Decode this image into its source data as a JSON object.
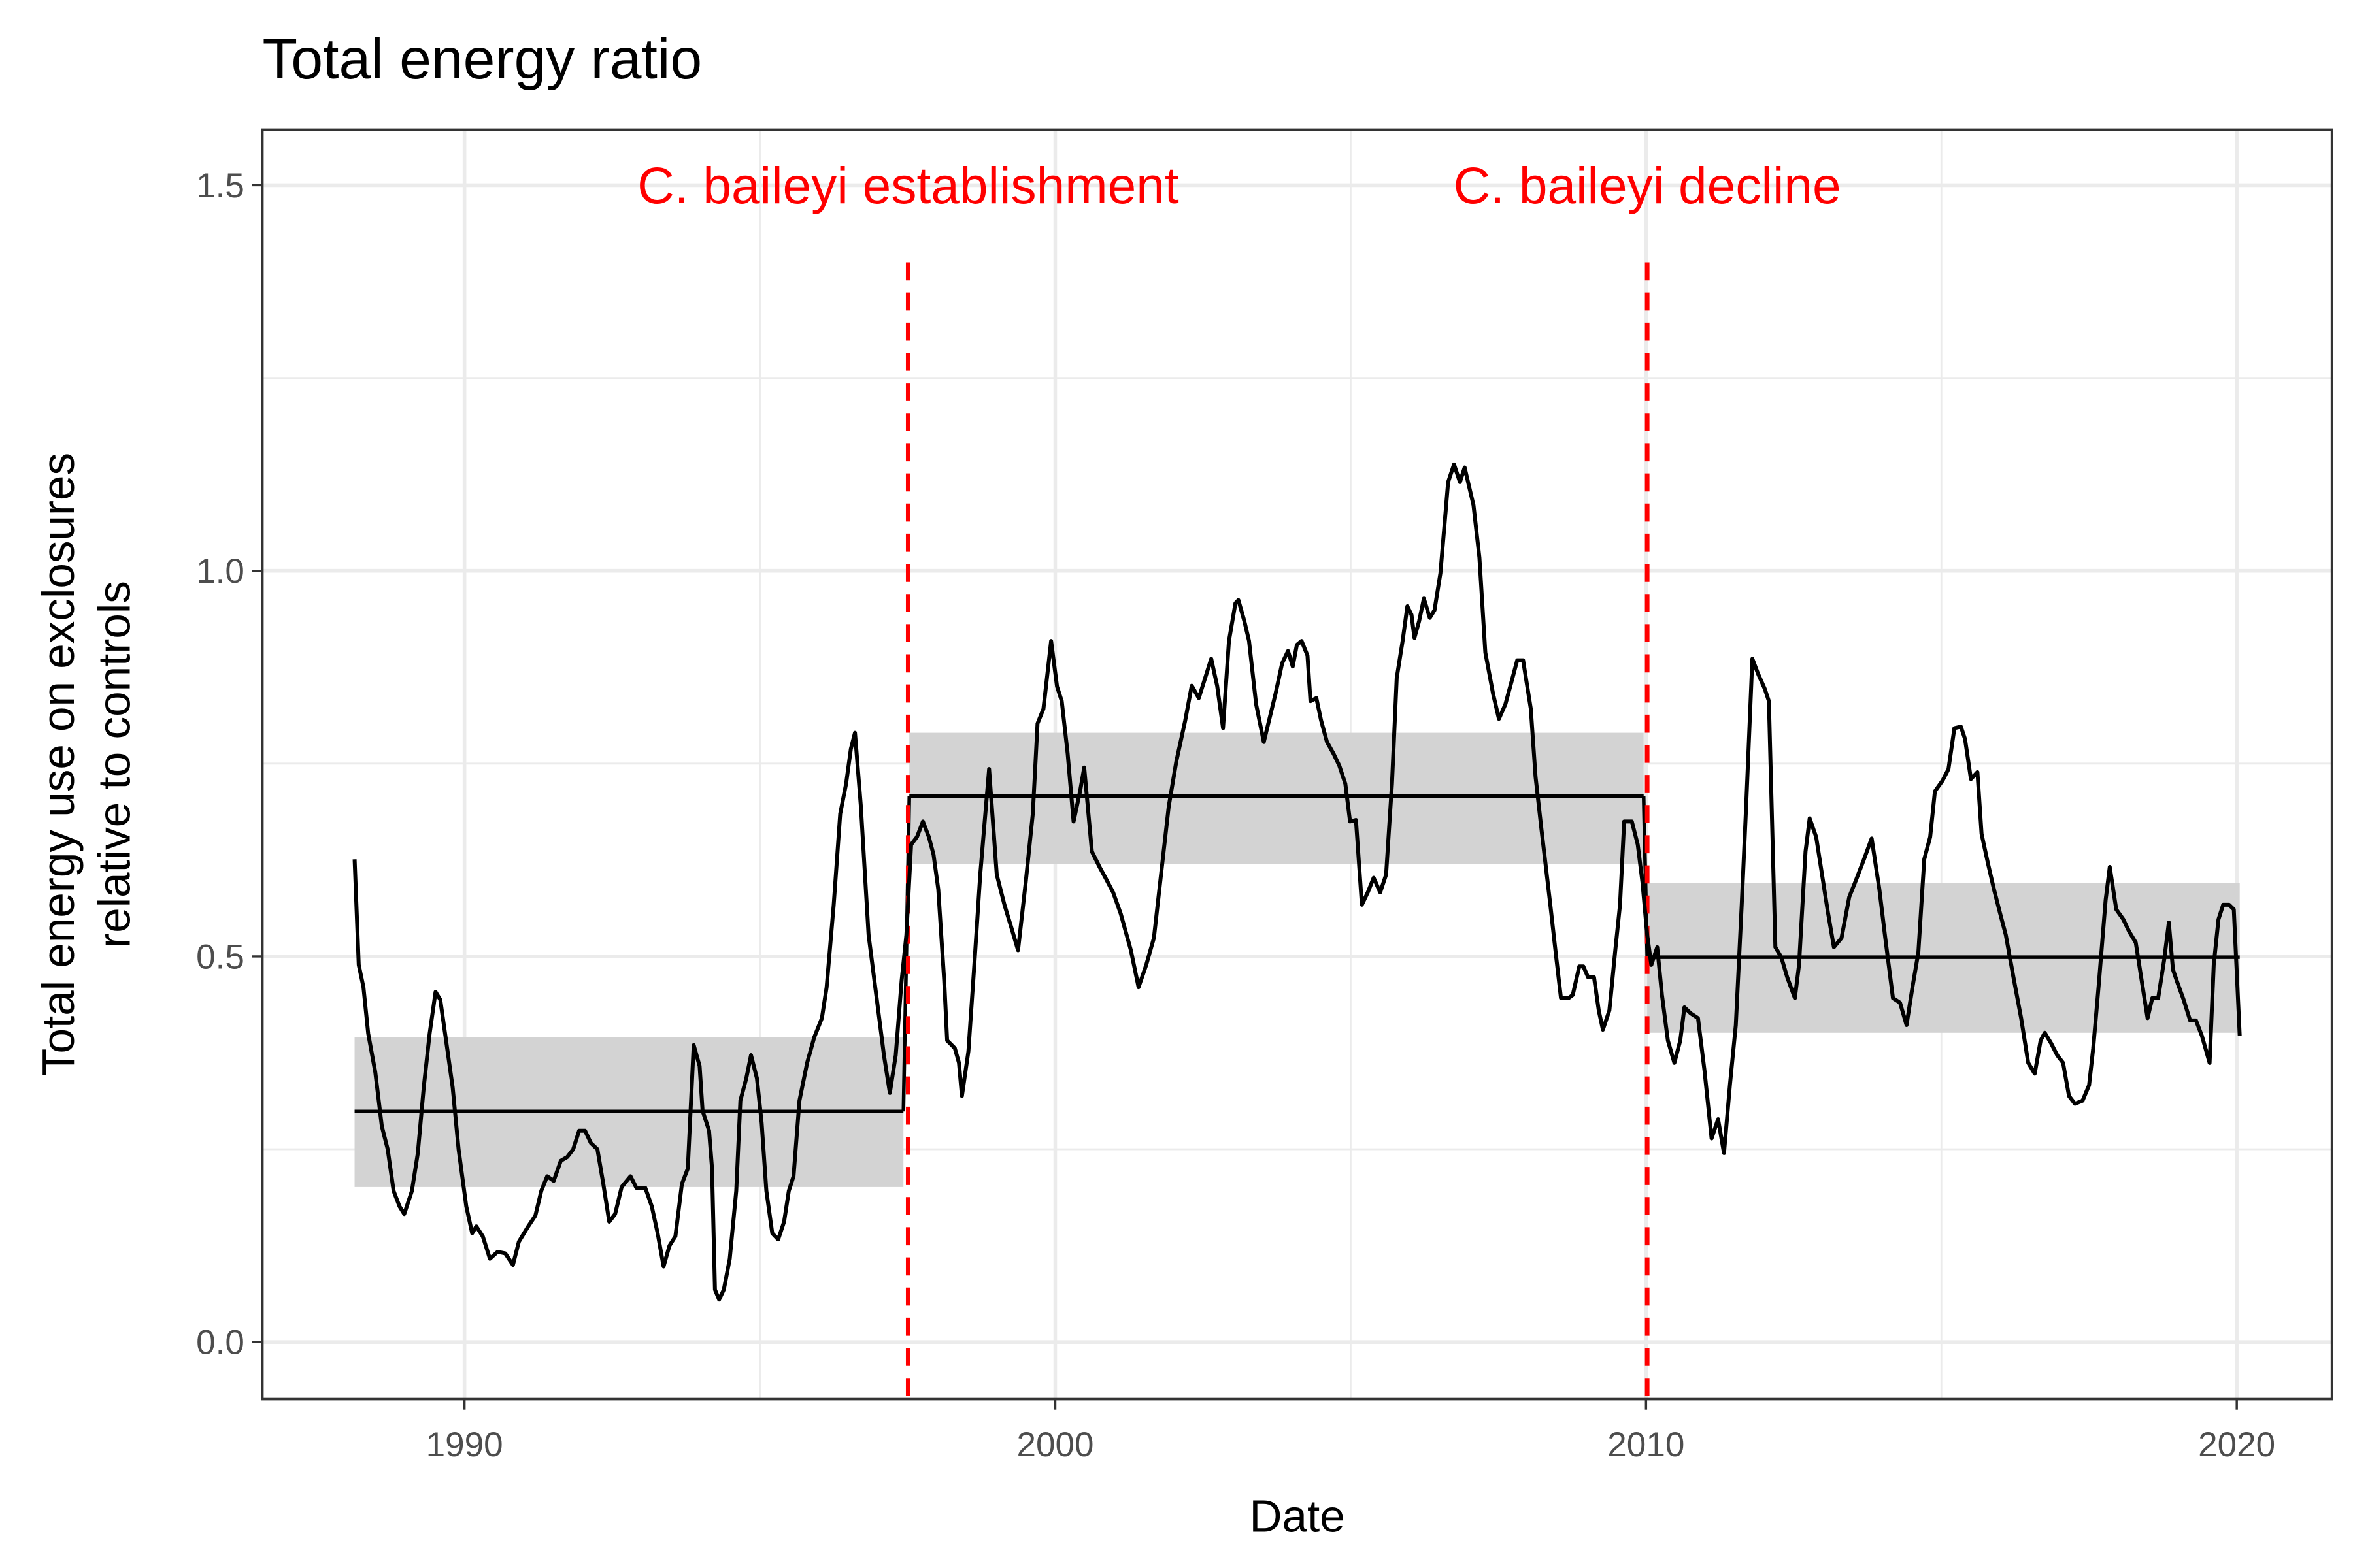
{
  "chart_data": {
    "type": "line",
    "title": "Total energy ratio",
    "xlabel": "Date",
    "ylabel": [
      "Total energy use on exclosures",
      "relative to controls"
    ],
    "xlim": [
      1986.58,
      2021.61
    ],
    "ylim": [
      -0.074,
      1.572
    ],
    "xticks": [
      1990,
      2000,
      2010,
      2020
    ],
    "yticks": [
      {
        "value": 0,
        "label": "0.0"
      },
      0.5,
      {
        "value": 1,
        "label": "1.0"
      },
      1.5
    ],
    "x_minor": [
      1995,
      2005,
      2015
    ],
    "y_minor": [
      0.25,
      0.75,
      1.25
    ],
    "grid": true,
    "color": "#000000",
    "band_color": "#d3d3d3",
    "changepoint_color": "#ff0000",
    "x": [
      1988.14,
      1988.21,
      1988.29,
      1988.37,
      1988.49,
      1988.6,
      1988.7,
      1988.8,
      1988.9,
      1988.98,
      1989.11,
      1989.21,
      1989.31,
      1989.41,
      1989.51,
      1989.59,
      1989.69,
      1989.8,
      1989.9,
      1990.03,
      1990.13,
      1990.2,
      1990.31,
      1990.43,
      1990.56,
      1990.69,
      1990.82,
      1990.92,
      1991.07,
      1991.2,
      1991.3,
      1991.4,
      1991.51,
      1991.63,
      1991.74,
      1991.84,
      1991.94,
      1992.04,
      1992.14,
      1992.25,
      1992.35,
      1992.45,
      1992.55,
      1992.66,
      1992.81,
      1992.91,
      1993.06,
      1993.17,
      1993.27,
      1993.37,
      1993.47,
      1993.57,
      1993.68,
      1993.78,
      1993.88,
      1993.98,
      1994.03,
      1994.14,
      1994.19,
      1994.24,
      1994.31,
      1994.39,
      1994.49,
      1994.6,
      1994.67,
      1994.77,
      1994.85,
      1994.95,
      1995.03,
      1995.11,
      1995.21,
      1995.31,
      1995.41,
      1995.49,
      1995.57,
      1995.67,
      1995.8,
      1995.92,
      1996.05,
      1996.13,
      1996.25,
      1996.36,
      1996.46,
      1996.54,
      1996.61,
      1996.71,
      1996.84,
      1996.97,
      1997.1,
      1997.2,
      1997.3,
      1997.4,
      1997.48,
      1997.56,
      1997.66,
      1997.76,
      1997.86,
      1997.94,
      1998.02,
      1998.12,
      1998.17,
      1998.3,
      1998.37,
      1998.42,
      1998.53,
      1998.63,
      1998.73,
      1998.88,
      1999.01,
      1999.14,
      1999.27,
      1999.37,
      1999.5,
      1999.62,
      1999.7,
      1999.8,
      1999.93,
      2000.03,
      2000.11,
      2000.21,
      2000.31,
      2000.42,
      2000.49,
      2000.62,
      2000.75,
      2000.85,
      2000.98,
      2001.11,
      2001.28,
      2001.41,
      2001.54,
      2001.67,
      2001.79,
      2001.92,
      2002.05,
      2002.2,
      2002.31,
      2002.43,
      2002.64,
      2002.74,
      2002.84,
      2002.94,
      2003.05,
      2003.1,
      2003.2,
      2003.28,
      2003.4,
      2003.53,
      2003.73,
      2003.84,
      2003.94,
      2004.02,
      2004.09,
      2004.17,
      2004.27,
      2004.32,
      2004.42,
      2004.5,
      2004.6,
      2004.71,
      2004.81,
      2004.91,
      2004.99,
      2005.09,
      2005.19,
      2005.29,
      2005.39,
      2005.5,
      2005.6,
      2005.7,
      2005.78,
      2005.88,
      2005.96,
      2006.03,
      2006.08,
      2006.16,
      2006.24,
      2006.34,
      2006.42,
      2006.52,
      2006.65,
      2006.75,
      2006.85,
      2006.93,
      2007.0,
      2007.08,
      2007.18,
      2007.28,
      2007.41,
      2007.51,
      2007.62,
      2007.74,
      2007.82,
      2007.92,
      2008.05,
      2008.13,
      2008.23,
      2008.38,
      2008.48,
      2008.56,
      2008.69,
      2008.76,
      2008.87,
      2008.94,
      2009.02,
      2009.12,
      2009.2,
      2009.27,
      2009.38,
      2009.48,
      2009.56,
      2009.63,
      2009.76,
      2009.86,
      2009.94,
      2010.02,
      2010.09,
      2010.19,
      2010.27,
      2010.37,
      2010.48,
      2010.58,
      2010.65,
      2010.76,
      2010.88,
      2010.99,
      2011.11,
      2011.22,
      2011.32,
      2011.42,
      2011.52,
      2011.62,
      2011.7,
      2011.8,
      2011.9,
      2012.01,
      2012.08,
      2012.19,
      2012.29,
      2012.39,
      2012.52,
      2012.59,
      2012.7,
      2012.77,
      2012.88,
      2012.98,
      2013.08,
      2013.18,
      2013.31,
      2013.44,
      2013.56,
      2013.69,
      2013.82,
      2013.95,
      2014.05,
      2014.18,
      2014.3,
      2014.41,
      2014.51,
      2014.61,
      2014.71,
      2014.81,
      2014.89,
      2015.02,
      2015.12,
      2015.22,
      2015.33,
      2015.4,
      2015.5,
      2015.61,
      2015.68,
      2015.79,
      2015.89,
      2015.99,
      2016.09,
      2016.22,
      2016.35,
      2016.47,
      2016.58,
      2016.68,
      2016.75,
      2016.86,
      2016.96,
      2017.06,
      2017.16,
      2017.26,
      2017.39,
      2017.5,
      2017.57,
      2017.67,
      2017.78,
      2017.85,
      2017.96,
      2018.08,
      2018.18,
      2018.29,
      2018.39,
      2018.49,
      2018.57,
      2018.67,
      2018.77,
      2018.85,
      2018.92,
      2019.0,
      2019.1,
      2019.21,
      2019.31,
      2019.41,
      2019.54,
      2019.61,
      2019.69,
      2019.77,
      2019.87,
      2019.95,
      2020.05
    ],
    "values": [
      0.626,
      0.489,
      0.46,
      0.4,
      0.35,
      0.28,
      0.25,
      0.196,
      0.176,
      0.166,
      0.196,
      0.245,
      0.33,
      0.4,
      0.454,
      0.444,
      0.39,
      0.33,
      0.25,
      0.176,
      0.141,
      0.15,
      0.137,
      0.108,
      0.117,
      0.115,
      0.1,
      0.13,
      0.149,
      0.164,
      0.196,
      0.215,
      0.209,
      0.235,
      0.24,
      0.25,
      0.274,
      0.274,
      0.258,
      0.25,
      0.205,
      0.156,
      0.166,
      0.201,
      0.215,
      0.2,
      0.2,
      0.176,
      0.141,
      0.098,
      0.125,
      0.137,
      0.205,
      0.225,
      0.385,
      0.358,
      0.3,
      0.274,
      0.225,
      0.068,
      0.055,
      0.068,
      0.108,
      0.196,
      0.313,
      0.342,
      0.372,
      0.342,
      0.284,
      0.196,
      0.141,
      0.133,
      0.156,
      0.196,
      0.215,
      0.313,
      0.362,
      0.395,
      0.42,
      0.46,
      0.567,
      0.685,
      0.724,
      0.769,
      0.79,
      0.694,
      0.528,
      0.45,
      0.372,
      0.323,
      0.372,
      0.469,
      0.528,
      0.645,
      0.655,
      0.675,
      0.655,
      0.632,
      0.587,
      0.469,
      0.391,
      0.381,
      0.362,
      0.319,
      0.377,
      0.489,
      0.606,
      0.743,
      0.606,
      0.567,
      0.534,
      0.508,
      0.596,
      0.685,
      0.802,
      0.821,
      0.909,
      0.85,
      0.831,
      0.763,
      0.675,
      0.714,
      0.745,
      0.636,
      0.616,
      0.602,
      0.583,
      0.555,
      0.508,
      0.46,
      0.489,
      0.524,
      0.606,
      0.694,
      0.753,
      0.806,
      0.851,
      0.835,
      0.886,
      0.851,
      0.796,
      0.909,
      0.958,
      0.962,
      0.935,
      0.909,
      0.827,
      0.778,
      0.841,
      0.88,
      0.896,
      0.876,
      0.904,
      0.909,
      0.89,
      0.831,
      0.835,
      0.806,
      0.778,
      0.763,
      0.747,
      0.724,
      0.675,
      0.677,
      0.567,
      0.583,
      0.602,
      0.583,
      0.606,
      0.724,
      0.861,
      0.909,
      0.954,
      0.943,
      0.913,
      0.935,
      0.964,
      0.939,
      0.949,
      0.997,
      1.115,
      1.138,
      1.115,
      1.134,
      1.111,
      1.085,
      1.017,
      0.894,
      0.841,
      0.808,
      0.827,
      0.861,
      0.884,
      0.884,
      0.821,
      0.733,
      0.665,
      0.567,
      0.499,
      0.446,
      0.446,
      0.45,
      0.487,
      0.487,
      0.473,
      0.473,
      0.43,
      0.405,
      0.43,
      0.508,
      0.567,
      0.675,
      0.675,
      0.645,
      0.596,
      0.528,
      0.489,
      0.512,
      0.45,
      0.391,
      0.362,
      0.391,
      0.434,
      0.426,
      0.42,
      0.352,
      0.264,
      0.289,
      0.245,
      0.333,
      0.411,
      0.567,
      0.704,
      0.886,
      0.866,
      0.847,
      0.831,
      0.512,
      0.499,
      0.473,
      0.446,
      0.489,
      0.636,
      0.679,
      0.655,
      0.606,
      0.557,
      0.512,
      0.524,
      0.577,
      0.6,
      0.626,
      0.653,
      0.587,
      0.524,
      0.446,
      0.44,
      0.411,
      0.46,
      0.505,
      0.626,
      0.655,
      0.714,
      0.728,
      0.743,
      0.796,
      0.798,
      0.782,
      0.73,
      0.739,
      0.659,
      0.62,
      0.587,
      0.557,
      0.528,
      0.473,
      0.42,
      0.362,
      0.348,
      0.391,
      0.401,
      0.387,
      0.372,
      0.362,
      0.319,
      0.309,
      0.313,
      0.333,
      0.381,
      0.469,
      0.573,
      0.616,
      0.561,
      0.548,
      0.532,
      0.518,
      0.469,
      0.42,
      0.446,
      0.446,
      0.495,
      0.544,
      0.483,
      0.465,
      0.444,
      0.417,
      0.417,
      0.397,
      0.362,
      0.489,
      0.548,
      0.567,
      0.567,
      0.561,
      0.397
    ],
    "segments": [
      {
        "x": [
          1988.14,
          1997.43
        ],
        "mean": 0.299,
        "lower": 0.201,
        "upper": 0.395
      },
      {
        "x": [
          1997.53,
          2009.96
        ],
        "mean": 0.708,
        "lower": 0.62,
        "upper": 0.79
      },
      {
        "x": [
          2010.02,
          2020.05
        ],
        "mean": 0.499,
        "lower": 0.401,
        "upper": 0.595
      }
    ],
    "changepoints": [
      {
        "x": 1997.51,
        "y_end": 1.4,
        "label": "C. baileyi establishment",
        "label_y": 1.5
      },
      {
        "x": 2010.02,
        "y_end": 1.4,
        "label": "C. baileyi decline",
        "label_y": 1.5
      }
    ]
  }
}
